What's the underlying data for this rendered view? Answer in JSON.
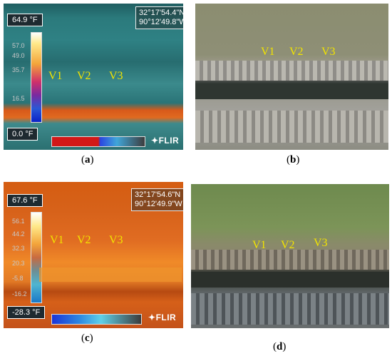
{
  "panels": {
    "a": {
      "max_temp": "64.9 °F",
      "min_temp": "0.0 °F",
      "gps_lat": "32°17'54.4\"N",
      "gps_lon": "90°12'49.8\"W",
      "scale_ticks": [
        "57.0",
        "49.0",
        "35.7",
        "16.5"
      ],
      "labels": [
        "V1",
        "V2",
        "V3"
      ],
      "logo": "FLIR",
      "caption_open": "(",
      "caption_letter": "a",
      "caption_close": ")"
    },
    "b": {
      "labels": [
        "V1",
        "V2",
        "V3"
      ],
      "caption_open": "(",
      "caption_letter": "b",
      "caption_close": ")"
    },
    "c": {
      "max_temp": "67.6 °F",
      "min_temp": "-28.3 °F",
      "gps_lat": "32°17'54.6\"N",
      "gps_lon": "90°12'49.9\"W",
      "scale_ticks": [
        "56.1",
        "44.2",
        "32.3",
        "20.3",
        "-5.8",
        "-16.2"
      ],
      "labels": [
        "V1",
        "V2",
        "V3"
      ],
      "logo": "FLIR",
      "caption_open": "(",
      "caption_letter": "c",
      "caption_close": ")"
    },
    "d": {
      "labels": [
        "V1",
        "V2",
        "V3"
      ],
      "caption_open": "(",
      "caption_letter": "d",
      "caption_close": ")"
    }
  },
  "colors": {
    "label_yellow": "#f2e400",
    "thermal_cool": "#2b7a7c",
    "thermal_hot": "#e06a20"
  }
}
